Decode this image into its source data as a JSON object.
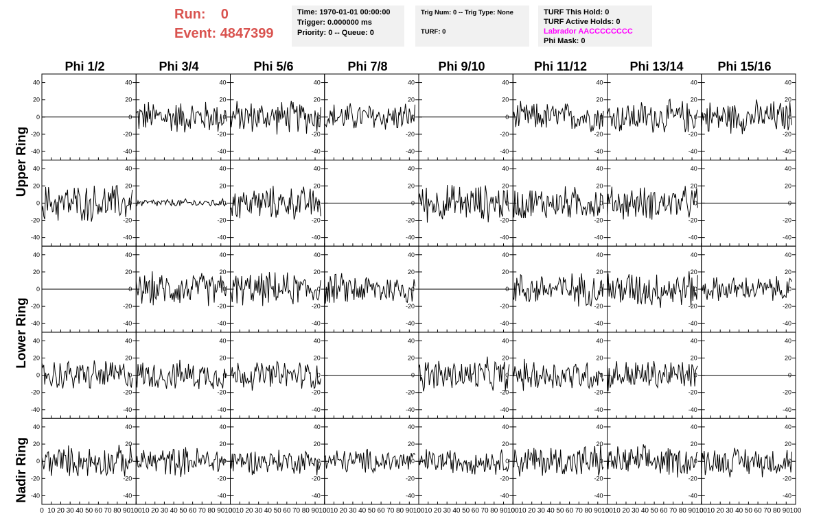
{
  "header": {
    "run_label": "Run:",
    "run_value": "0",
    "event_label": "Event:",
    "event_value": "4847399"
  },
  "info_box_1": {
    "time": "Time: 1970-01-01 00:00:00",
    "trigger": "Trigger: 0.000000 ms",
    "priority": "Priority: 0 -- Queue: 0"
  },
  "info_box_2": {
    "trig": "Trig Num: 0 -- Trig Type: None",
    "turf": "TURF: 0"
  },
  "info_box_3": {
    "this_hold": "TURF This Hold: 0",
    "active_holds": "TURF Active Holds: 0",
    "labrador": "Labrador AACCCCCCCC",
    "phi_mask": "Phi Mask: 0"
  },
  "colors": {
    "run_text": "#d9534f",
    "labrador_text": "#ff00ff",
    "info_bg": "#f1f1f1",
    "trace": "#000000"
  },
  "chart_data": {
    "type": "line",
    "column_labels": [
      "Phi 1/2",
      "Phi 3/4",
      "Phi 5/6",
      "Phi 7/8",
      "Phi 9/10",
      "Phi 11/12",
      "Phi 13/14",
      "Phi 15/16"
    ],
    "row_labels": [
      "Upper Ring",
      "Lower Ring",
      "Nadir Ring"
    ],
    "xlim": [
      0,
      100
    ],
    "ylim": [
      -50,
      50
    ],
    "x_ticks": [
      0,
      10,
      20,
      30,
      40,
      50,
      60,
      70,
      80,
      90,
      100
    ],
    "y_ticks": [
      -40,
      -20,
      0,
      20,
      40
    ],
    "samples_per_trace": 96,
    "grid": false,
    "panels_amplitude": [
      [
        0,
        16,
        16,
        14,
        0,
        14,
        16,
        16
      ],
      [
        18,
        4,
        16,
        0,
        18,
        16,
        16,
        0
      ],
      [
        0,
        16,
        16,
        15,
        0,
        16,
        18,
        12
      ],
      [
        15,
        14,
        14,
        0,
        16,
        15,
        15,
        0
      ],
      [
        15,
        14,
        12,
        12,
        12,
        16,
        15,
        14
      ]
    ]
  }
}
